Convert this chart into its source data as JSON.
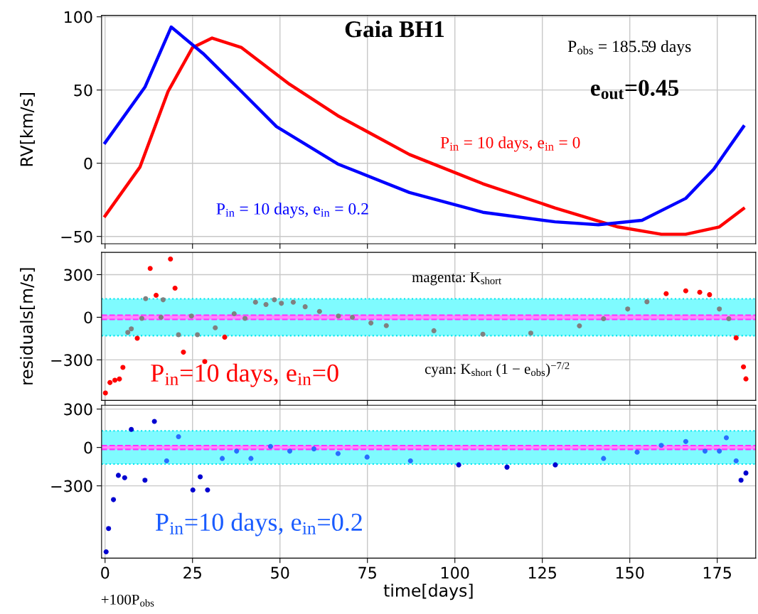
{
  "chart_data": [
    {
      "type": "line",
      "ylabel": "RV[km/s]",
      "xlim": [
        -1,
        186
      ],
      "xticks": [
        0,
        25,
        50,
        75,
        100,
        125,
        150,
        175
      ],
      "ylim": [
        -55,
        101
      ],
      "yticks": [
        -50,
        0,
        50,
        100
      ],
      "grid": true,
      "tick_labels": "y",
      "series": [
        {
          "color": "#ff0000",
          "x": [
            0,
            10,
            18,
            25,
            30.6,
            39,
            52.7,
            66.5,
            87,
            108,
            128.6,
            146.6,
            159,
            166,
            175.6,
            182.5
          ],
          "values": [
            -36,
            -2.5,
            49,
            79,
            85.5,
            79,
            54,
            32.5,
            6,
            -14,
            -30.5,
            -43.5,
            -48.5,
            -48.5,
            -43.5,
            -31
          ]
        },
        {
          "color": "#0000ff",
          "x": [
            0,
            11.4,
            18.9,
            28,
            39,
            49,
            66.5,
            87,
            108,
            128.6,
            141,
            153.5,
            166,
            174,
            182.5
          ],
          "values": [
            14,
            52,
            93,
            75,
            49,
            25,
            -0.5,
            -20,
            -33.5,
            -40,
            -42,
            -39,
            -24,
            -4,
            25
          ]
        }
      ],
      "annotations": [
        "Gaia BH1",
        "P$_{obs}$ = 185.59 days",
        "e$_{out}$=0.45",
        "P$_{in}$ = 10 days, e$_{in}$ = 0",
        "P$_{in}$ = 10 days, e$_{in}$ = 0.2"
      ]
    },
    {
      "type": "scatter",
      "ylabel": "residuals[m/s]",
      "xlim": [
        -1,
        186
      ],
      "xticks": [
        0,
        25,
        50,
        75,
        100,
        125,
        150,
        175
      ],
      "ylim": [
        -585,
        457
      ],
      "yticks": [
        -300,
        0,
        300
      ],
      "grid": true,
      "tick_labels": "y",
      "bands": [
        {
          "axis": "y",
          "from": -130,
          "to": 130,
          "color": "#7ffbff"
        },
        {
          "axis": "y",
          "from": -15,
          "to": 15,
          "color": "#ff88ff"
        }
      ],
      "ref_lines": [
        {
          "axis": "y",
          "value": -130,
          "color": "#00e5ee",
          "line_style": "dotted"
        },
        {
          "axis": "y",
          "value": 130,
          "color": "#00e5ee",
          "line_style": "dotted"
        },
        {
          "axis": "y",
          "value": -15,
          "color": "#ff33ff",
          "line_style": "dashed"
        },
        {
          "axis": "y",
          "value": 15,
          "color": "#ff33ff",
          "line_style": "dashed"
        }
      ],
      "series": [
        {
          "x": [
            0.1,
            1.4,
            2.8,
            4.1,
            5.1,
            6.5,
            7.5,
            9.2,
            10.5,
            11.6,
            12.9,
            14.6,
            16,
            16.6,
            18.7,
            20,
            21,
            22.4,
            24.7,
            26.4,
            28.5,
            31.5,
            34.2,
            36.9,
            40,
            43,
            46,
            48.4,
            50.4,
            53.8,
            57.2,
            61.3,
            66.7,
            70.7,
            76,
            80.4,
            94,
            108,
            121.7,
            135.6,
            142.5,
            149.4,
            154.9,
            160.4,
            166,
            170,
            172.8,
            175.6,
            178.3,
            180.4,
            182.5,
            183.2
          ],
          "values": [
            -533,
            -460,
            -443,
            -435,
            -353,
            -107,
            -82,
            -148,
            -8,
            131,
            344,
            155,
            0,
            123,
            410,
            205,
            -123,
            -246,
            8,
            -123,
            -312,
            -74,
            -140,
            25,
            -8,
            106,
            90,
            123,
            98,
            106,
            74,
            41,
            8,
            0,
            -41,
            -59,
            -95,
            -119,
            -112,
            -61,
            -10,
            58,
            109,
            166,
            186,
            176,
            159,
            58,
            -10,
            -145,
            -349,
            -434
          ],
          "colors": [
            "#ff0000",
            "#ff0000",
            "#ff0000",
            "#ff0000",
            "#ff0000",
            "#808080",
            "#808080",
            "#ff0000",
            "#808080",
            "#808080",
            "#ff0000",
            "#ff0000",
            "#808080",
            "#808080",
            "#ff0000",
            "#ff0000",
            "#808080",
            "#ff0000",
            "#808080",
            "#808080",
            "#ff0000",
            "#808080",
            "#ff0000",
            "#808080",
            "#808080",
            "#808080",
            "#808080",
            "#808080",
            "#808080",
            "#808080",
            "#808080",
            "#808080",
            "#808080",
            "#808080",
            "#808080",
            "#808080",
            "#808080",
            "#808080",
            "#808080",
            "#808080",
            "#808080",
            "#808080",
            "#808080",
            "#ff0000",
            "#ff0000",
            "#ff0000",
            "#ff0000",
            "#808080",
            "#808080",
            "#ff0000",
            "#ff0000",
            "#ff0000"
          ]
        }
      ],
      "annotations": [
        "magenta: K$_{short}$",
        "cyan: K$_{short}$ (1 − e$_{obs}$)$^{−7/2}$",
        "P$_{in}$=10 days, e$_{in}$=0"
      ]
    },
    {
      "type": "scatter",
      "xlabel": "time[days]",
      "xlim": [
        -1,
        186
      ],
      "xticks": [
        0,
        25,
        50,
        75,
        100,
        125,
        150,
        175
      ],
      "ylim": [
        -865,
        330
      ],
      "yticks": [
        -300,
        0,
        300
      ],
      "grid": true,
      "bands": [
        {
          "axis": "y",
          "from": -130,
          "to": 130,
          "color": "#7ffbff"
        },
        {
          "axis": "y",
          "from": -15,
          "to": 15,
          "color": "#ff88ff"
        }
      ],
      "ref_lines": [
        {
          "axis": "y",
          "value": -130,
          "color": "#00e5ee",
          "line_style": "dotted"
        },
        {
          "axis": "y",
          "value": 130,
          "color": "#00e5ee",
          "line_style": "dotted"
        },
        {
          "axis": "y",
          "value": -15,
          "color": "#ff33ff",
          "line_style": "dashed"
        },
        {
          "axis": "y",
          "value": 15,
          "color": "#ff33ff",
          "line_style": "dashed"
        }
      ],
      "series": [
        {
          "x": [
            0.3,
            1,
            2.4,
            3.8,
            5.6,
            7.5,
            11.4,
            14.1,
            17.6,
            21,
            25.1,
            27.2,
            29.3,
            33.5,
            37.6,
            41.7,
            47.3,
            52.8,
            59.7,
            66.6,
            74.9,
            87.3,
            101.1,
            114.9,
            128.7,
            142.5,
            152.1,
            159,
            166,
            171.5,
            175.6,
            177.6,
            180.4,
            181.8,
            183.2
          ],
          "values": [
            -816,
            -634,
            -408,
            -218,
            -237,
            141,
            -256,
            204,
            -105,
            84,
            -332,
            -230,
            -332,
            -86,
            -29,
            -86,
            8,
            -29,
            -11,
            -48,
            -75,
            -105,
            -136,
            -154,
            -136,
            -86,
            -37,
            16,
            46,
            -29,
            -29,
            76,
            -105,
            -256,
            -200
          ],
          "colors": [
            "#0000d0",
            "#0000d0",
            "#0000d0",
            "#0000d0",
            "#0000d0",
            "#0000d0",
            "#0000d0",
            "#0000d0",
            "#2a6cff",
            "#2a6cff",
            "#0000d0",
            "#0000d0",
            "#0000d0",
            "#2a6cff",
            "#2a6cff",
            "#2a6cff",
            "#2a6cff",
            "#2a6cff",
            "#2a6cff",
            "#2a6cff",
            "#2a6cff",
            "#2a6cff",
            "#0000d0",
            "#0000d0",
            "#0000d0",
            "#2a6cff",
            "#2a6cff",
            "#2a6cff",
            "#2a6cff",
            "#2a6cff",
            "#2a6cff",
            "#2a6cff",
            "#2a6cff",
            "#0000d0",
            "#0000d0"
          ]
        }
      ],
      "annotations": [
        "P$_{in}$=10 days, e$_{in}$=0.2",
        "+100P$_{obs}$"
      ]
    }
  ]
}
